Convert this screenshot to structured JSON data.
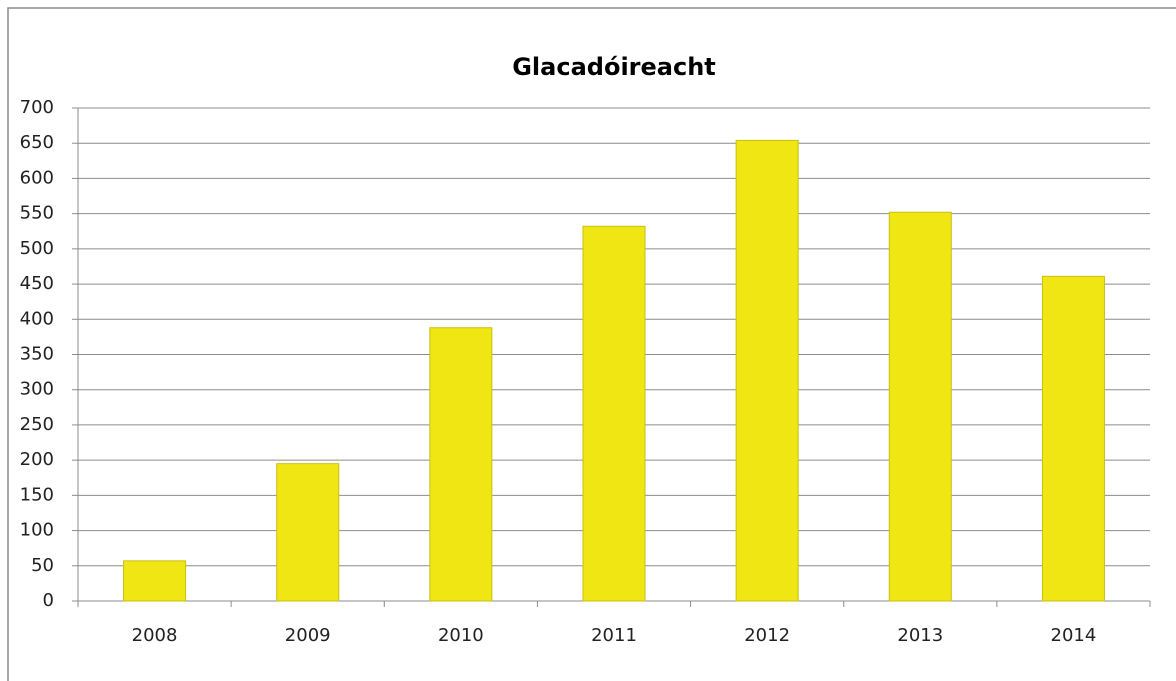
{
  "chart_data": {
    "type": "bar",
    "title": "Glacadóireacht",
    "categories": [
      "2008",
      "2009",
      "2010",
      "2011",
      "2012",
      "2013",
      "2014"
    ],
    "values": [
      57,
      195,
      388,
      532,
      654,
      552,
      461
    ],
    "color": "#f0e614",
    "ylim": [
      0,
      700
    ],
    "yticks": [
      0,
      50,
      100,
      150,
      200,
      250,
      300,
      350,
      400,
      450,
      500,
      550,
      600,
      650,
      700
    ],
    "grid": true
  }
}
